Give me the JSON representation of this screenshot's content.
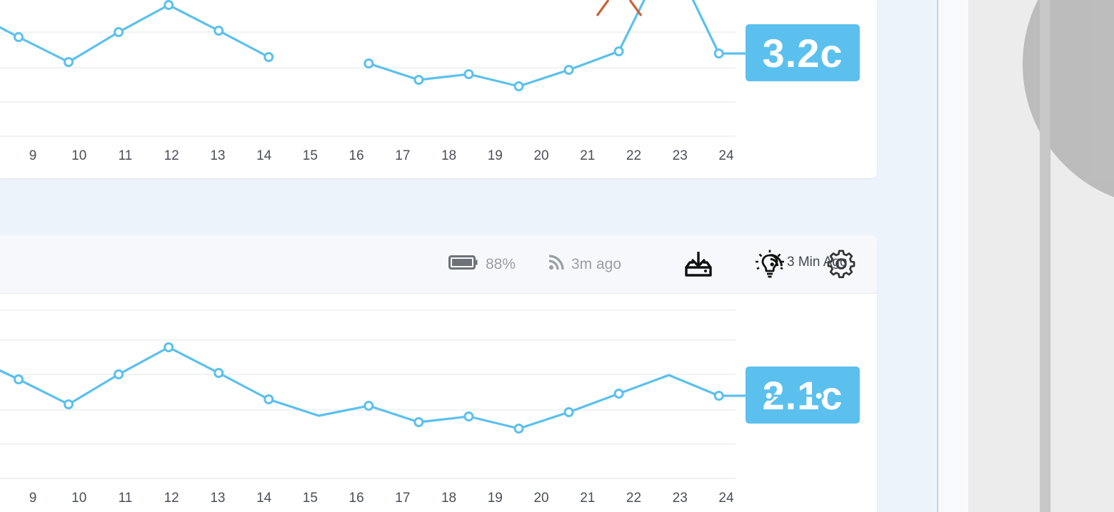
{
  "hours": [
    "9",
    "10",
    "11",
    "12",
    "13",
    "14",
    "15",
    "16",
    "17",
    "18",
    "19",
    "20",
    "21",
    "22",
    "23",
    "24"
  ],
  "charts": {
    "top": {
      "value_label": "3.2c",
      "series_color": "#5bc0ee",
      "highlight_color": "#c8643a",
      "segments": [
        [
          [
            0,
            52
          ],
          [
            1,
            87
          ],
          [
            2,
            45
          ],
          [
            3,
            7
          ],
          [
            4,
            43
          ],
          [
            5,
            80
          ]
        ],
        [
          [
            7,
            89
          ],
          [
            8,
            112
          ],
          [
            9,
            104
          ],
          [
            10,
            121
          ],
          [
            11,
            98
          ],
          [
            12,
            72
          ],
          [
            13,
            -70
          ],
          [
            14,
            75
          ],
          [
            15,
            75
          ],
          [
            16,
            75
          ]
        ]
      ]
    },
    "bottom": {
      "value_label": "2.1c",
      "series_color": "#5bc0ee",
      "points": [
        [
          0,
          532
        ],
        [
          1,
          567
        ],
        [
          2,
          525
        ],
        [
          3,
          487
        ],
        [
          4,
          523
        ],
        [
          5,
          560
        ],
        [
          6,
          583
        ],
        [
          7,
          569
        ],
        [
          8,
          592
        ],
        [
          9,
          584
        ],
        [
          10,
          601
        ],
        [
          11,
          578
        ],
        [
          12,
          552
        ],
        [
          13,
          526
        ],
        [
          14,
          555
        ],
        [
          15,
          555
        ],
        [
          16,
          555
        ]
      ]
    }
  },
  "status_bar": {
    "battery": "88%",
    "last_seen": "3m ago",
    "download_icon": "download-tray-icon",
    "bulb_icon": "lightbulb-icon",
    "settings_icon": "gear-icon"
  },
  "footer": {
    "updated": "3 Min Ago"
  },
  "colors": {
    "background": "#edf3fb",
    "accent": "#5bc0ee"
  }
}
